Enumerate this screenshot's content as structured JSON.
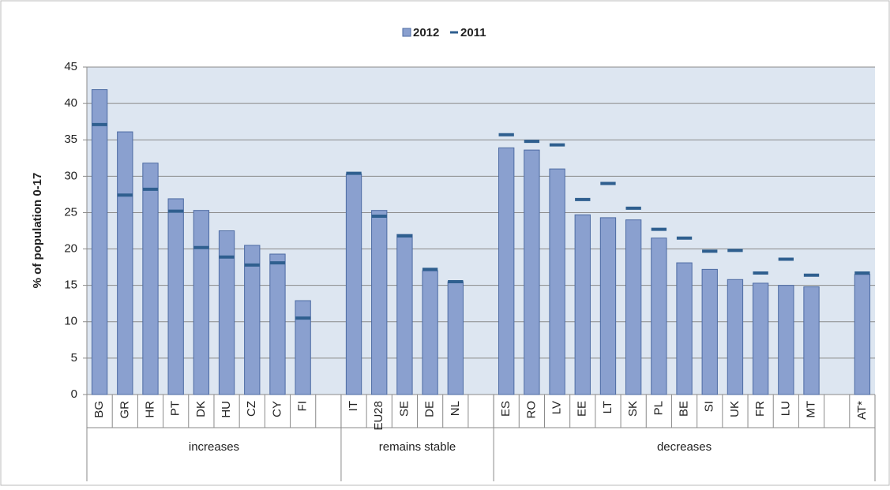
{
  "chart_data": {
    "type": "bar",
    "y_label": "% of population 0-17",
    "categories": [
      "BG",
      "GR",
      "HR",
      "PT",
      "DK",
      "HU",
      "CZ",
      "CY",
      "FI",
      null,
      "IT",
      "EU28",
      "SE",
      "DE",
      "NL",
      null,
      "ES",
      "RO",
      "LV",
      "EE",
      "LT",
      "SK",
      "PL",
      "BE",
      "SI",
      "UK",
      "FR",
      "LU",
      "MT",
      null,
      "AT*"
    ],
    "series": [
      {
        "name": "2012",
        "color": "#8aa0cf",
        "mark": "bar",
        "values": [
          41.9,
          36.1,
          31.8,
          26.9,
          25.3,
          22.5,
          20.5,
          19.3,
          12.9,
          null,
          30.3,
          25.3,
          22.0,
          17.0,
          15.5,
          null,
          33.9,
          33.6,
          31.0,
          24.7,
          24.3,
          24.0,
          21.5,
          18.1,
          17.2,
          15.8,
          15.3,
          15.0,
          14.8,
          null,
          16.5
        ]
      },
      {
        "name": "2011",
        "color": "#2f5f8f",
        "mark": "dash",
        "values": [
          37.1,
          27.4,
          28.2,
          25.2,
          20.2,
          18.9,
          17.8,
          18.1,
          10.5,
          null,
          30.4,
          24.5,
          21.8,
          17.2,
          15.5,
          null,
          35.7,
          34.8,
          34.3,
          26.8,
          29.0,
          25.6,
          22.7,
          21.5,
          19.7,
          19.8,
          16.7,
          18.6,
          16.4,
          null,
          16.7
        ]
      }
    ],
    "groups": [
      {
        "name": "increases",
        "first": "BG"
      },
      {
        "name": "remains stable",
        "first": "IT"
      },
      {
        "name": "decreases",
        "first": "ES"
      }
    ],
    "ylim": [
      0,
      45
    ],
    "yticks": [
      0,
      5,
      10,
      15,
      20,
      25,
      30,
      35,
      40,
      45
    ],
    "grid": true,
    "legend": "top"
  }
}
